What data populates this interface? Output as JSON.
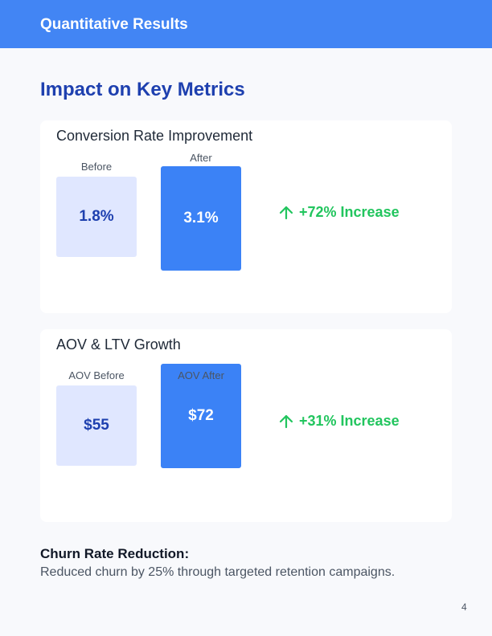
{
  "header": {
    "title": "Quantitative Results"
  },
  "section": {
    "title": "Impact on Key Metrics"
  },
  "cards": [
    {
      "title": "Conversion Rate Improvement",
      "before": {
        "label": "Before",
        "value": "1.8%"
      },
      "after": {
        "label": "After",
        "value": "3.1%"
      },
      "change": "+72% Increase"
    },
    {
      "title": "AOV & LTV Growth",
      "before": {
        "label": "AOV Before",
        "value": "$55"
      },
      "after": {
        "label": "AOV After",
        "value": "$72"
      },
      "change": "+31% Increase"
    }
  ],
  "churn": {
    "title": "Churn Rate Reduction:",
    "text": "Reduced churn by 25% through targeted retention campaigns."
  },
  "page_number": "4"
}
